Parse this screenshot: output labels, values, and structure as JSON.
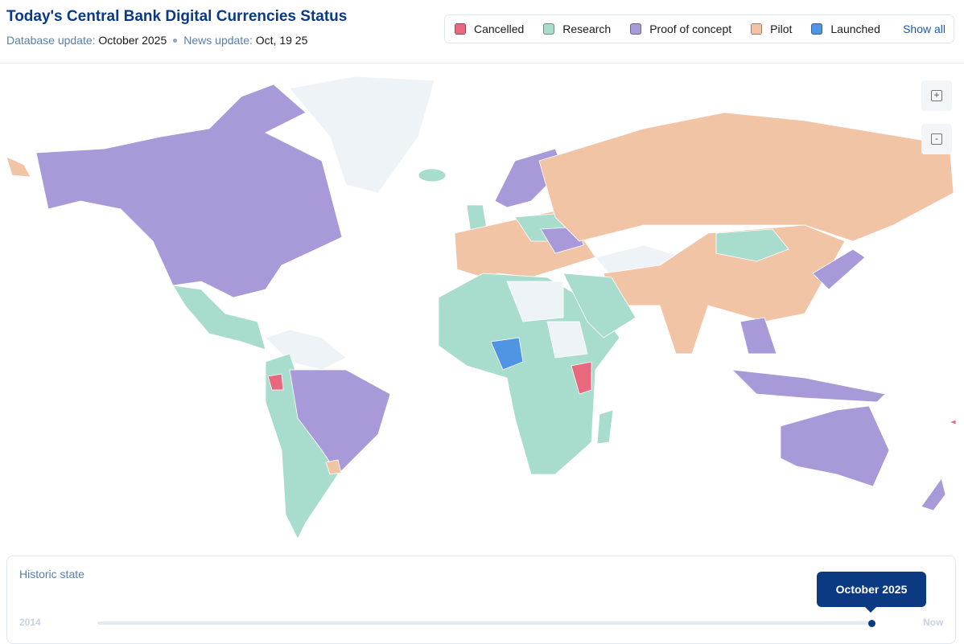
{
  "header": {
    "title": "Today's Central Bank Digital Currencies Status",
    "database_update_label": "Database update:",
    "database_update_value": "October 2025",
    "news_update_label": "News update:",
    "news_update_value": "Oct, 19 25"
  },
  "legend": {
    "items": [
      {
        "label": "Cancelled",
        "color": "#e8697d"
      },
      {
        "label": "Research",
        "color": "#a8dccd"
      },
      {
        "label": "Proof of concept",
        "color": "#a89ad8"
      },
      {
        "label": "Pilot",
        "color": "#f2c4a6"
      },
      {
        "label": "Launched",
        "color": "#4f95e3"
      }
    ],
    "show_all": "Show all"
  },
  "map_controls": {
    "zoom_in": "+",
    "zoom_out": "-"
  },
  "timeline": {
    "label": "Historic state",
    "start": "2014",
    "end": "Now",
    "current": "October 2025"
  }
}
